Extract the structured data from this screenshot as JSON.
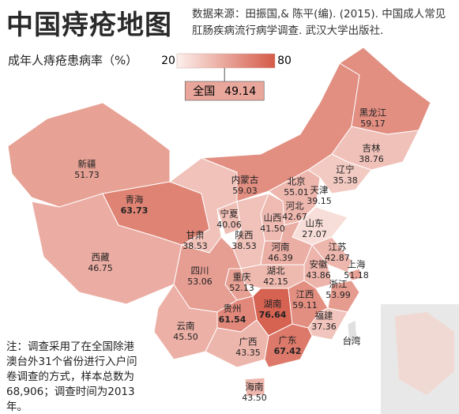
{
  "title": "中国痔疮地图",
  "source": "数据来源：田振国,& 陈平(编). (2015). 中国成人常见肛肠疾病流行病学调查. 武汉大学出版社.",
  "legend": {
    "title": "成年人痔疮患病率（%）",
    "min": 20,
    "max": 80,
    "color_low": "#fdf0ec",
    "color_high": "#d45a48"
  },
  "national": {
    "name": "全国",
    "value": 49.14
  },
  "regions": [
    {
      "name": "新疆",
      "value": 51.73
    },
    {
      "name": "西藏",
      "value": 46.75
    },
    {
      "name": "青海",
      "value": 63.73
    },
    {
      "name": "甘肃",
      "value": 38.53
    },
    {
      "name": "内蒙古",
      "value": 59.03
    },
    {
      "name": "黑龙江",
      "value": 59.17
    },
    {
      "name": "吉林",
      "value": 38.76
    },
    {
      "name": "辽宁",
      "value": 35.38
    },
    {
      "name": "北京",
      "value": 55.01
    },
    {
      "name": "天津",
      "value": 39.15
    },
    {
      "name": "河北",
      "value": 42.67
    },
    {
      "name": "山西",
      "value": 41.5,
      "value_label": "41.50"
    },
    {
      "name": "宁夏",
      "value": 40.06
    },
    {
      "name": "山东",
      "value": 27.07
    },
    {
      "name": "陕西",
      "value": 38.53
    },
    {
      "name": "河南",
      "value": 46.39
    },
    {
      "name": "江苏",
      "value": 42.87
    },
    {
      "name": "安徽",
      "value": 43.86
    },
    {
      "name": "上海",
      "value": 51.18
    },
    {
      "name": "湖北",
      "value": 42.15
    },
    {
      "name": "四川",
      "value": 53.06
    },
    {
      "name": "重庆",
      "value": 52.13
    },
    {
      "name": "浙江",
      "value": 53.99
    },
    {
      "name": "湖南",
      "value": 76.64
    },
    {
      "name": "江西",
      "value": 59.11
    },
    {
      "name": "贵州",
      "value": 61.54
    },
    {
      "name": "福建",
      "value": 37.36
    },
    {
      "name": "云南",
      "value": 45.5,
      "value_label": "45.50"
    },
    {
      "name": "广西",
      "value": 43.35
    },
    {
      "name": "广东",
      "value": 67.42
    },
    {
      "name": "海南",
      "value": 43.5,
      "value_label": "43.50"
    }
  ],
  "unlabeled_regions": [
    {
      "name": "台湾"
    }
  ],
  "note": "注：调查采用了在全国除港澳台外31个省份进行入户问卷调查的方式，样本总数为68,906；调查时间为2013年。"
}
